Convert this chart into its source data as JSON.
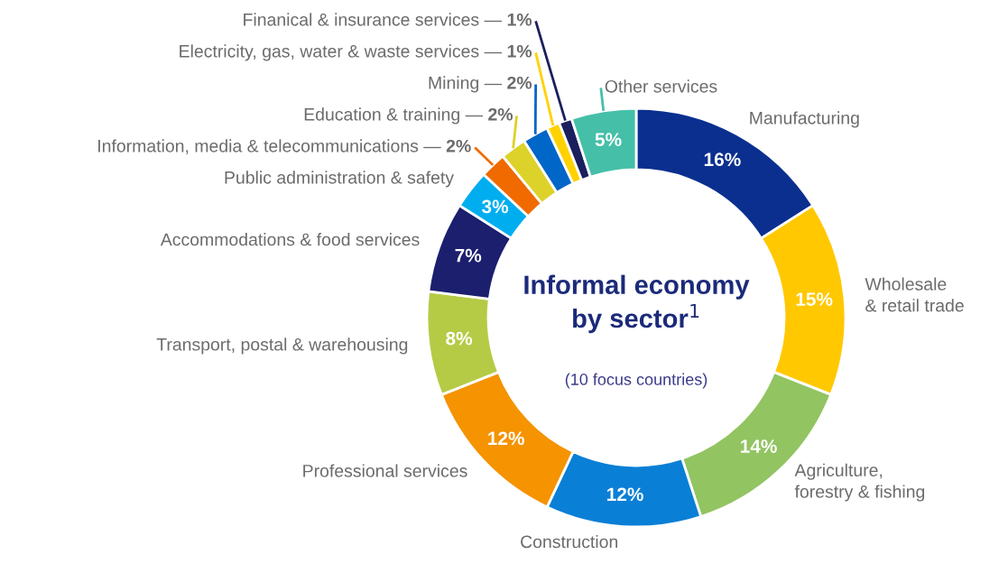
{
  "chart_data": {
    "type": "donut",
    "title": "Informal economy by sector$^{1}$",
    "subtitle": "(10 focus countries)",
    "categories": [
      "Manufacturing",
      "Wholesale\n& retail trade",
      "Agriculture,\nforestry & fishing",
      "Construction",
      "Professional services",
      "Transport, postal & warehousing",
      "Accommodations & food services",
      "Public administration & safety",
      "Information, media & telecommunications —",
      "Education & training —",
      "Mining —",
      "Electricity, gas, water & waste services —",
      "Finanical & insurance services —",
      "Other services"
    ],
    "values": [
      16,
      15,
      14,
      12,
      12,
      8,
      7,
      3,
      2,
      2,
      2,
      1,
      1,
      5
    ],
    "colors": [
      "#0a2f8f",
      "#ffc800",
      "#92c462",
      "#0a7fd6",
      "#f59300",
      "#b5cb45",
      "#1b1f6e",
      "#00aeef",
      "#f06a00",
      "#ddd22a",
      "#0066c8",
      "#ffd200",
      "#1b1f5e",
      "#45bfa8"
    ],
    "value_labels": [
      "16%",
      "15%",
      "14%",
      "12%",
      "12%",
      "8%",
      "7%",
      "3%",
      "2%",
      "2%",
      "2%",
      "1%",
      "1%",
      "5%"
    ]
  }
}
